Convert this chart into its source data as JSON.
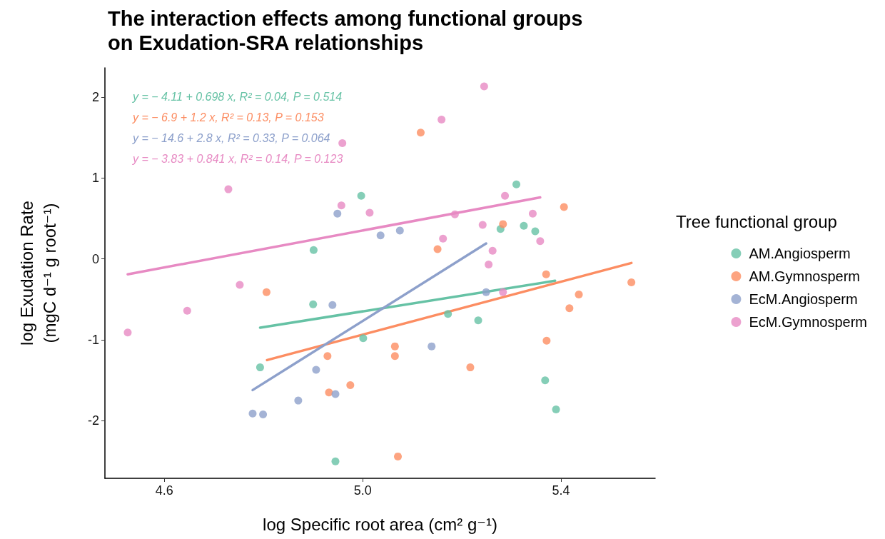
{
  "chart_data": {
    "type": "scatter",
    "title": "The interaction effects among functional groups\non Exudation-SRA relationships",
    "xlabel": "log Specific root area (cm² g⁻¹)",
    "ylabel": "log Exudation Rate\n(mgC d⁻¹ g root⁻¹)",
    "legend_title": "Tree functional group",
    "annotations": [
      "y = − 4.11 + 0.698 x, R² = 0.04, P = 0.514",
      "y = − 6.9 + 1.2 x, R² = 0.13, P = 0.153",
      "y = − 14.6 + 2.8 x, R² = 0.33, P = 0.064",
      "y = − 3.83 + 0.841 x, R² = 0.14, P = 0.123"
    ],
    "xlim": [
      4.48,
      5.59
    ],
    "ylim": [
      -2.71,
      2.36
    ],
    "xticks": [
      4.6,
      {
        "value": 5,
        "label": "5.0"
      },
      5.4
    ],
    "yticks": [
      -2,
      -1,
      0,
      1,
      2
    ],
    "grid": false,
    "legend": "right",
    "marker": "circle",
    "series": [
      {
        "name": "AM.Angiosperm",
        "color": "#66c2a5",
        "x": [
          4.997,
          5.31,
          5.278,
          5.325,
          5.348,
          4.9,
          5.172,
          5.233,
          5.001,
          4.793,
          5.368,
          5.39,
          4.945,
          4.901
        ],
        "values": [
          0.78,
          0.92,
          0.37,
          0.41,
          0.34,
          -0.56,
          -0.68,
          -0.76,
          -0.98,
          -1.34,
          -1.5,
          -1.86,
          -2.5,
          0.11
        ]
      },
      {
        "name": "AM.Gymnosperm",
        "color": "#fc8d62",
        "x": [
          5.117,
          5.283,
          5.151,
          5.406,
          4.806,
          5.37,
          5.436,
          5.417,
          5.542,
          5.371,
          5.065,
          5.065,
          4.929,
          5.217,
          4.975,
          4.932,
          5.071
        ],
        "values": [
          1.56,
          0.43,
          0.12,
          0.64,
          -0.41,
          -0.19,
          -0.44,
          -0.61,
          -0.29,
          -1.01,
          -1.08,
          -1.2,
          -1.2,
          -1.34,
          -1.56,
          -1.65,
          -2.44
        ]
      },
      {
        "name": "EcM.Angiosperm",
        "color": "#8da0cb",
        "x": [
          4.949,
          5.036,
          5.075,
          5.249,
          4.939,
          5.139,
          4.906,
          4.87,
          4.945,
          4.778,
          4.799
        ],
        "values": [
          0.56,
          0.29,
          0.35,
          -0.41,
          -0.57,
          -1.08,
          -1.37,
          -1.75,
          -1.67,
          -1.91,
          -1.92
        ]
      },
      {
        "name": "EcM.Gymnosperm",
        "color": "#e78ac3",
        "x": [
          5.245,
          5.159,
          4.959,
          4.729,
          4.957,
          5.014,
          5.287,
          5.186,
          5.242,
          5.162,
          5.343,
          5.358,
          5.262,
          5.254,
          5.283,
          4.752,
          4.646,
          4.526
        ],
        "values": [
          2.13,
          1.72,
          1.43,
          0.86,
          0.66,
          0.57,
          0.78,
          0.55,
          0.42,
          0.25,
          0.56,
          0.22,
          0.1,
          -0.07,
          -0.41,
          -0.32,
          -0.64,
          -0.91
        ]
      },
      {
        "type": "line",
        "marker": "none",
        "color": "#66c2a5",
        "x": [
          4.793,
          5.388
        ],
        "values": [
          -0.85,
          -0.27
        ]
      },
      {
        "type": "line",
        "marker": "none",
        "color": "#fc8d62",
        "x": [
          4.807,
          5.542
        ],
        "values": [
          -1.25,
          -0.05
        ]
      },
      {
        "type": "line",
        "marker": "none",
        "color": "#8da0cb",
        "x": [
          4.778,
          5.249
        ],
        "values": [
          -1.62,
          0.19
        ]
      },
      {
        "type": "line",
        "marker": "none",
        "color": "#e78ac3",
        "x": [
          4.526,
          5.358
        ],
        "values": [
          -0.19,
          0.76
        ]
      }
    ]
  }
}
